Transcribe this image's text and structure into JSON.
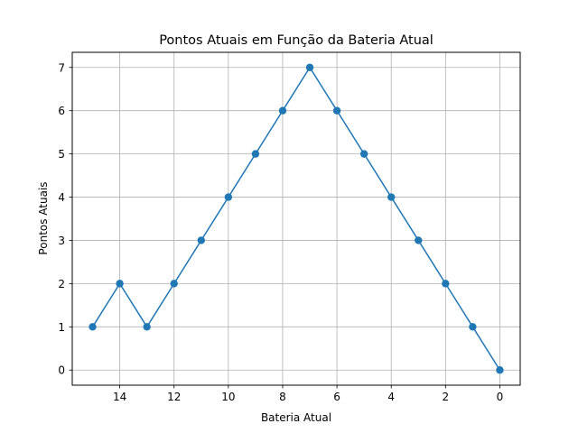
{
  "chart_data": {
    "type": "line",
    "title": "Pontos Atuais em Função da Bateria Atual",
    "xlabel": "Bateria Atual",
    "ylabel": "Pontos Atuais",
    "x": [
      15,
      14,
      13,
      12,
      11,
      10,
      9,
      8,
      7,
      6,
      5,
      4,
      3,
      2,
      1,
      0
    ],
    "series": [
      {
        "values": [
          1,
          2,
          1,
          2,
          3,
          4,
          5,
          6,
          7,
          6,
          5,
          4,
          3,
          2,
          1,
          0
        ]
      }
    ],
    "xlim": [
      15.75,
      -0.75
    ],
    "ylim": [
      -0.35,
      7.35
    ],
    "x_inverted": true,
    "xticks": [
      14,
      12,
      10,
      8,
      6,
      4,
      2,
      0
    ],
    "yticks": [
      0,
      1,
      2,
      3,
      4,
      5,
      6,
      7
    ],
    "grid": true,
    "marker": "circle",
    "color": "#1f77b4"
  }
}
